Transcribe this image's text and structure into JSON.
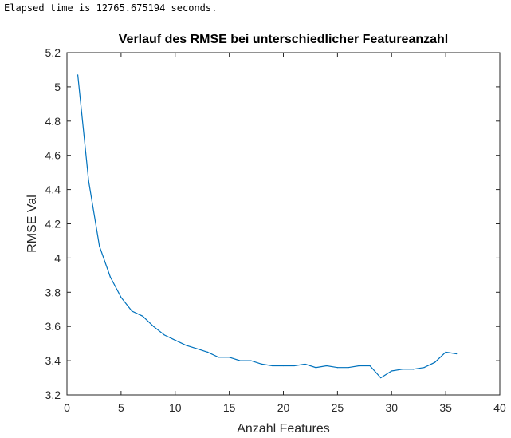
{
  "console": {
    "text": "Elapsed time is 12765.675194 seconds."
  },
  "chart_data": {
    "type": "line",
    "title": "Verlauf des RMSE bei unterschiedlicher Featureanzahl",
    "xlabel": "Anzahl Features",
    "ylabel": "RMSE Val",
    "xlim": [
      0,
      40
    ],
    "ylim": [
      3.2,
      5.2
    ],
    "xticks": [
      0,
      5,
      10,
      15,
      20,
      25,
      30,
      35,
      40
    ],
    "yticks": [
      3.2,
      3.4,
      3.6,
      3.8,
      4,
      4.2,
      4.4,
      4.6,
      4.8,
      5,
      5.2
    ],
    "grid": false,
    "line_color": "#0072BD",
    "series": [
      {
        "x": [
          1,
          2,
          3,
          4,
          5,
          6,
          7,
          8,
          9,
          10,
          11,
          12,
          13,
          14,
          15,
          16,
          17,
          18,
          19,
          20,
          21,
          22,
          23,
          24,
          25,
          26,
          27,
          28,
          29,
          30,
          31,
          32,
          33,
          34,
          35,
          36
        ],
        "values": [
          5.07,
          4.45,
          4.07,
          3.89,
          3.77,
          3.69,
          3.66,
          3.6,
          3.55,
          3.52,
          3.49,
          3.47,
          3.45,
          3.42,
          3.42,
          3.4,
          3.4,
          3.38,
          3.37,
          3.37,
          3.37,
          3.38,
          3.36,
          3.37,
          3.36,
          3.36,
          3.37,
          3.37,
          3.3,
          3.34,
          3.35,
          3.35,
          3.36,
          3.39,
          3.45,
          3.44
        ]
      }
    ]
  }
}
